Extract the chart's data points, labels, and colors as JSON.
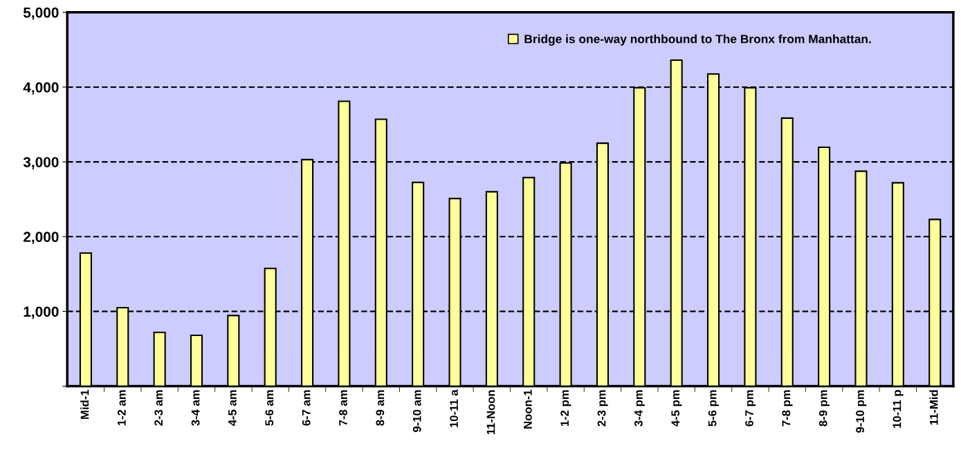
{
  "chart_data": {
    "type": "bar",
    "categories": [
      "Mid-1",
      "1-2 am",
      "2-3 am",
      "3-4 am",
      "4-5 am",
      "5-6 am",
      "6-7 am",
      "7-8 am",
      "8-9 am",
      "9-10 am",
      "10-11 a",
      "11-Noon",
      "Noon-1",
      "1-2 pm",
      "2-3 pm",
      "3-4 pm",
      "4-5 pm",
      "5-6 pm",
      "6-7 pm",
      "7-8 pm",
      "8-9 pm",
      "9-10 pm",
      "10-11 p",
      "11-Mid"
    ],
    "series": [
      {
        "name": "Bridge is one-way northbound to The Bronx from Manhattan.",
        "color": "#ffff99",
        "values": [
          1780,
          1050,
          720,
          680,
          945,
          1575,
          3030,
          3810,
          3570,
          2725,
          2510,
          2600,
          2790,
          2985,
          3250,
          3990,
          4360,
          4175,
          3990,
          3585,
          3195,
          2875,
          2720,
          2230
        ]
      }
    ],
    "ylim": [
      0,
      5000
    ],
    "yticks": [
      {
        "value": 0,
        "label": null
      },
      {
        "value": 1000,
        "label": "1,000"
      },
      {
        "value": 2000,
        "label": "2,000"
      },
      {
        "value": 3000,
        "label": "3,000"
      },
      {
        "value": 4000,
        "label": "4,000"
      },
      {
        "value": 5000,
        "label": "5,000"
      }
    ],
    "grid": "y",
    "line_style": "dashed",
    "legend": "top right"
  }
}
